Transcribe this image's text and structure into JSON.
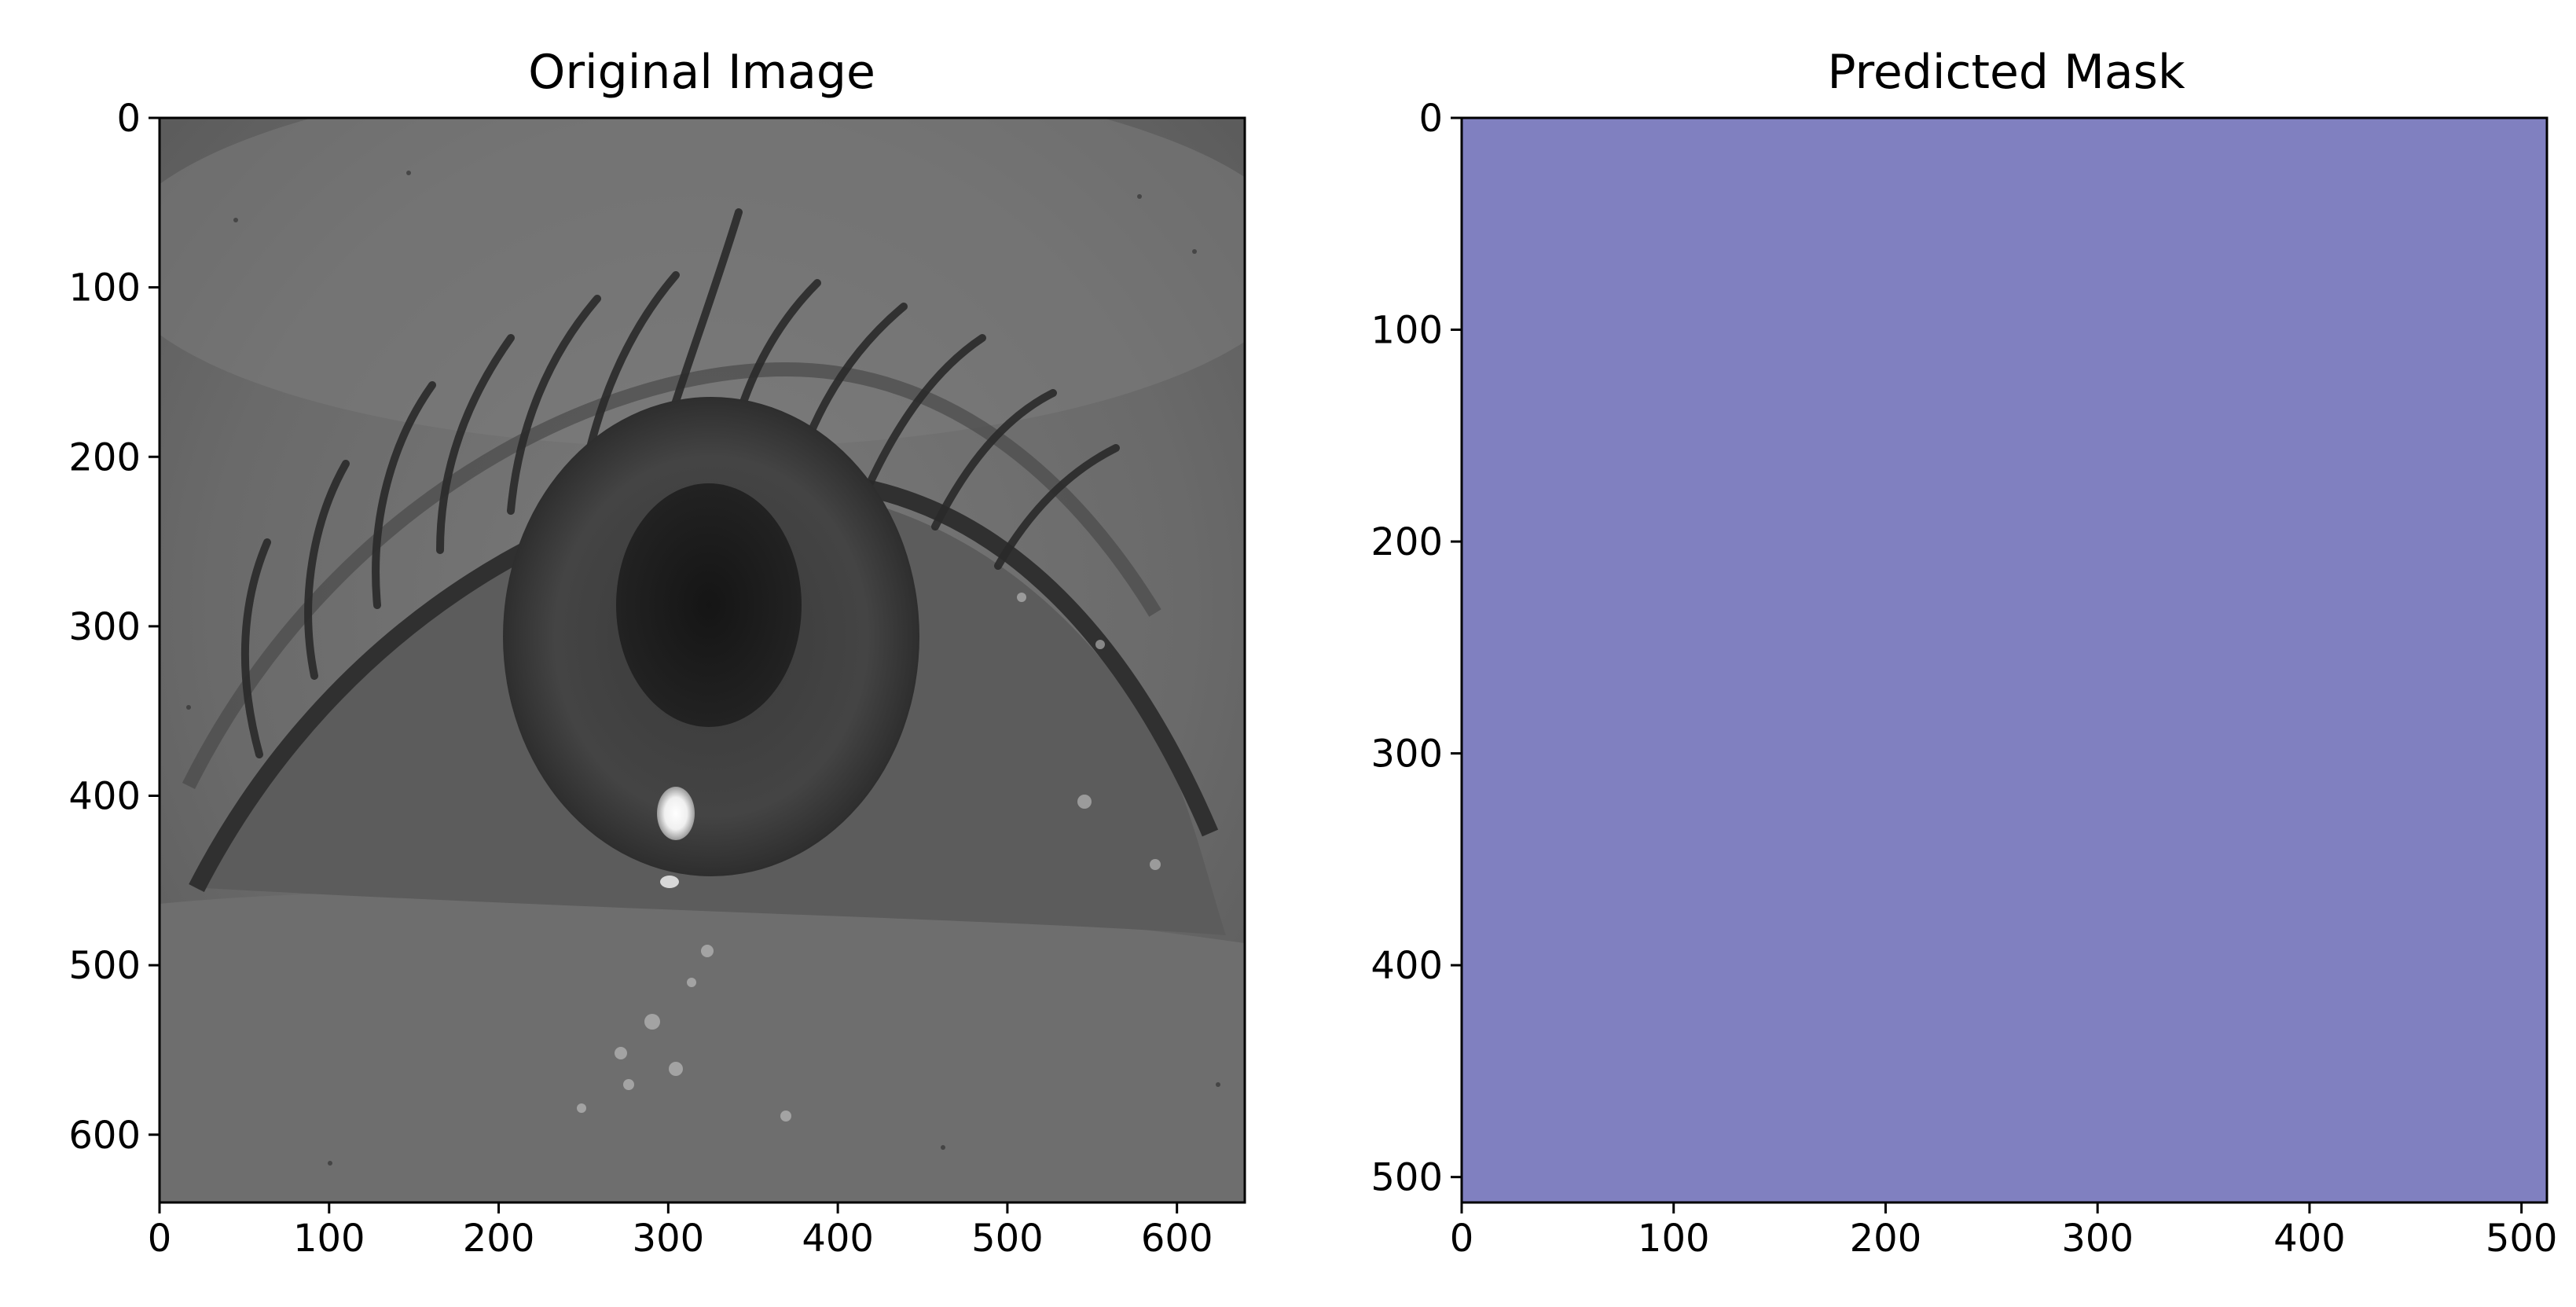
{
  "chart_data": [
    {
      "type": "image",
      "title": "Original Image",
      "xlim": [
        0,
        640
      ],
      "ylim": [
        640,
        0
      ],
      "xticks": [
        0,
        100,
        200,
        300,
        400,
        500,
        600
      ],
      "yticks": [
        0,
        100,
        200,
        300,
        400,
        500,
        600
      ],
      "image": {
        "content": "grayscale infrared eye photograph",
        "colormap": "gray"
      }
    },
    {
      "type": "heatmap",
      "title": "Predicted Mask",
      "xlim": [
        0,
        512
      ],
      "ylim": [
        512,
        0
      ],
      "xticks": [
        0,
        100,
        200,
        300,
        400,
        500
      ],
      "yticks": [
        0,
        100,
        200,
        300,
        400,
        500
      ],
      "fill_color": "#8080C0",
      "uniform_value": 0
    }
  ]
}
